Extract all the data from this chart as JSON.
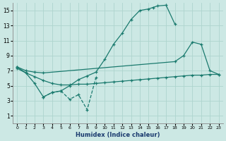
{
  "xlabel": "Humidex (Indice chaleur)",
  "color": "#1a7a6e",
  "bg_color": "#cce8e4",
  "grid_color": "#aed4ce",
  "ylim": [
    0,
    16
  ],
  "xlim": [
    -0.5,
    23.5
  ],
  "yticks": [
    1,
    3,
    5,
    7,
    9,
    11,
    13,
    15
  ],
  "xticks": [
    0,
    1,
    2,
    3,
    4,
    5,
    6,
    7,
    8,
    9,
    10,
    11,
    12,
    13,
    14,
    15,
    16,
    17,
    18,
    19,
    20,
    21,
    22,
    23
  ],
  "x_top": [
    0,
    1,
    2,
    3,
    4,
    5,
    6,
    7,
    8,
    9,
    10,
    11,
    12,
    13,
    14,
    15,
    15.5,
    16,
    17,
    18
  ],
  "y_top": [
    7.5,
    6.7,
    5.3,
    3.5,
    4.1,
    4.3,
    5.0,
    5.8,
    6.3,
    6.8,
    8.5,
    10.5,
    12.0,
    13.8,
    15.0,
    15.2,
    15.4,
    15.6,
    15.7,
    13.2
  ],
  "x_mid": [
    0,
    1,
    2,
    3,
    18,
    19,
    20,
    21,
    22,
    23
  ],
  "y_mid": [
    7.5,
    7.0,
    6.8,
    6.7,
    8.2,
    9.0,
    10.8,
    10.5,
    7.0,
    6.5
  ],
  "x_bot": [
    0,
    1,
    2,
    3,
    4,
    5,
    6,
    7,
    8,
    9,
    10,
    11,
    12,
    13,
    14,
    15,
    16,
    17,
    18,
    19,
    20,
    21,
    22,
    23
  ],
  "y_bot": [
    7.3,
    6.7,
    6.2,
    5.7,
    5.3,
    5.1,
    5.1,
    5.2,
    5.2,
    5.3,
    5.4,
    5.5,
    5.6,
    5.7,
    5.8,
    5.9,
    6.0,
    6.1,
    6.2,
    6.3,
    6.4,
    6.4,
    6.5,
    6.5
  ],
  "x_dashed": [
    3,
    4,
    5,
    6,
    7,
    8,
    9
  ],
  "y_dashed": [
    3.5,
    4.1,
    4.3,
    3.2,
    3.8,
    1.8,
    6.1
  ]
}
